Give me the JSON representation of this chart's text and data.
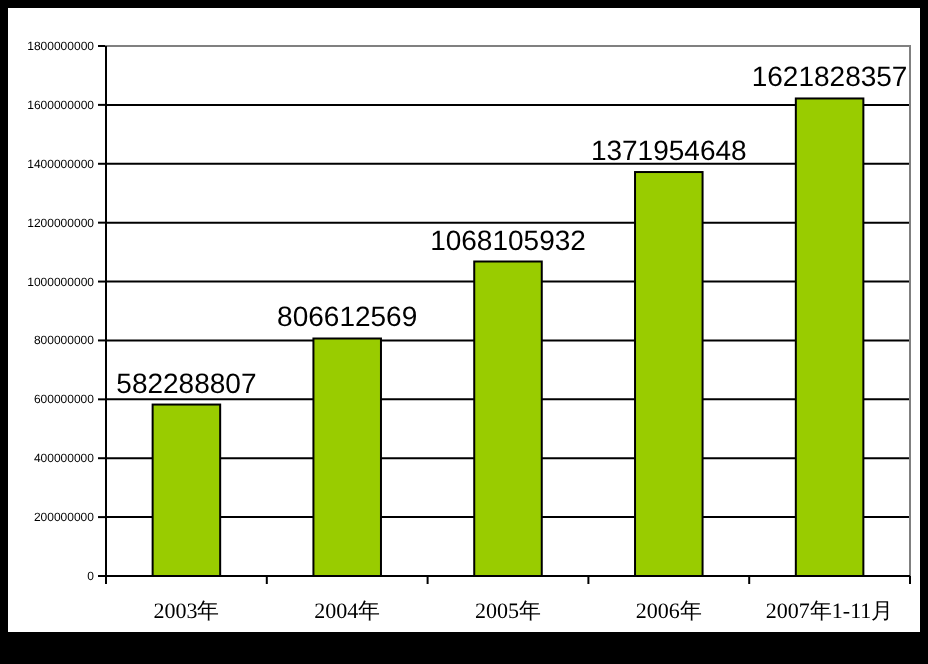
{
  "chart_data": {
    "type": "bar",
    "categories": [
      "2003年",
      "2004年",
      "2005年",
      "2006年",
      "2007年1-11月"
    ],
    "values": [
      582288807,
      806612569,
      1068105932,
      1371954648,
      1621828357
    ],
    "color": "#99cc00",
    "ylim": [
      0,
      1800000000
    ],
    "yticks": [
      0,
      200000000,
      400000000,
      600000000,
      800000000,
      1000000000,
      1200000000,
      1400000000,
      1600000000,
      1800000000
    ],
    "grid": "y",
    "data_labels": true
  }
}
